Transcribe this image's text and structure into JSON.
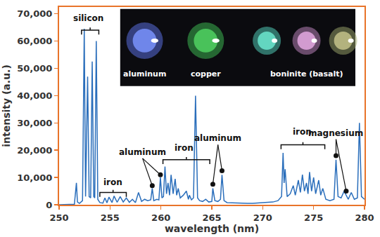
{
  "chart_data": {
    "type": "line",
    "x_label": "wavelength (nm)",
    "y_label": "intensity (a.u.)",
    "color": "#2a6ebb",
    "grid": false,
    "xlim": [
      250,
      280
    ],
    "ylim": [
      0,
      72500
    ],
    "xticks": [
      250,
      255,
      260,
      265,
      270,
      275,
      280
    ],
    "yticks": [
      0,
      {
        "value": 10000,
        "label": "10,000"
      },
      {
        "value": 20000,
        "label": "20,000"
      },
      {
        "value": 30000,
        "label": "30,000"
      },
      {
        "value": 40000,
        "label": "40,000"
      },
      {
        "value": 50000,
        "label": "50,000"
      },
      {
        "value": 60000,
        "label": "60,000"
      },
      {
        "value": 70000,
        "label": "70,000"
      }
    ],
    "x": [
      250,
      251.5,
      251.7,
      251.8,
      252.0,
      252.3,
      252.47,
      252.6,
      252.8,
      252.95,
      253.1,
      253.25,
      253.4,
      253.5,
      253.65,
      253.8,
      254.0,
      254.3,
      254.5,
      254.7,
      254.9,
      255.2,
      255.4,
      255.7,
      256.0,
      256.3,
      256.6,
      256.9,
      257.2,
      257.5,
      257.8,
      258.1,
      258.4,
      258.7,
      259.0,
      259.15,
      259.3,
      259.6,
      259.8,
      259.95,
      260.1,
      260.25,
      260.4,
      260.55,
      260.7,
      260.85,
      261.0,
      261.2,
      261.4,
      261.55,
      261.7,
      261.9,
      262.2,
      262.5,
      262.7,
      262.8,
      263.0,
      263.2,
      263.4,
      263.6,
      263.8,
      264.1,
      264.4,
      264.7,
      265.0,
      265.1,
      265.3,
      265.6,
      265.85,
      266.0,
      266.2,
      266.5,
      267.0,
      267.5,
      268.0,
      268.5,
      269.0,
      269.5,
      270.0,
      270.5,
      271.0,
      271.5,
      271.85,
      272.0,
      272.1,
      272.2,
      272.4,
      272.7,
      273.0,
      273.2,
      273.5,
      273.7,
      273.9,
      274.1,
      274.3,
      274.45,
      274.6,
      274.8,
      275.0,
      275.2,
      275.5,
      275.7,
      275.9,
      276.2,
      276.6,
      277.0,
      277.2,
      277.4,
      277.7,
      278.0,
      278.2,
      278.4,
      278.7,
      279.0,
      279.3,
      279.5,
      279.7,
      280
    ],
    "values": [
      0,
      200,
      8000,
      1000,
      500,
      1500,
      64500,
      3000,
      47000,
      3000,
      2500,
      52500,
      3000,
      2500,
      60000,
      2000,
      800,
      600,
      2500,
      700,
      2800,
      800,
      3200,
      900,
      3000,
      1000,
      2500,
      900,
      2000,
      800,
      4500,
      1200,
      2000,
      1500,
      1800,
      6000,
      1500,
      2000,
      1800,
      10000,
      2500,
      3000,
      14000,
      4000,
      8000,
      3500,
      11000,
      4000,
      9500,
      3500,
      6000,
      2500,
      3500,
      5000,
      2000,
      3500,
      1800,
      2500,
      40000,
      2500,
      1500,
      1200,
      2000,
      1000,
      1200,
      6000,
      1500,
      1200,
      2000,
      11000,
      1500,
      800,
      700,
      600,
      600,
      500,
      500,
      600,
      700,
      800,
      1000,
      1500,
      3000,
      19000,
      8000,
      13000,
      3000,
      4000,
      7000,
      3500,
      9000,
      4500,
      11000,
      5000,
      8000,
      4000,
      12000,
      5000,
      10000,
      4000,
      9000,
      3500,
      6000,
      2000,
      1500,
      2000,
      16500,
      3000,
      2500,
      5000,
      3500,
      2000,
      4500,
      2000,
      2500,
      30000,
      3000,
      2000
    ],
    "annotations": [
      {
        "text": "silicon",
        "x": 252.9,
        "y": 66000,
        "bracket": {
          "x0": 252.2,
          "x1": 253.9,
          "y": 64000
        }
      },
      {
        "text": "iron",
        "x": 255.3,
        "y": 6000,
        "bracket": {
          "x0": 254.0,
          "x1": 256.6,
          "y": 4500
        }
      },
      {
        "text": "aluminum",
        "x": 258.2,
        "y": 17000,
        "points": [
          {
            "x": 259.15,
            "y": 7000
          },
          {
            "x": 259.95,
            "y": 11000
          }
        ]
      },
      {
        "text": "iron",
        "x": 262.3,
        "y": 18500,
        "bracket": {
          "x0": 260.2,
          "x1": 264.8,
          "y": 16500
        }
      },
      {
        "text": "aluminum",
        "x": 265.6,
        "y": 22000,
        "points": [
          {
            "x": 265.1,
            "y": 7500
          },
          {
            "x": 266.0,
            "y": 12500
          }
        ]
      },
      {
        "text": "iron",
        "x": 273.9,
        "y": 24500,
        "bracket": {
          "x0": 271.8,
          "x1": 276.1,
          "y": 22000
        }
      },
      {
        "text": "magnesium",
        "x": 277.2,
        "y": 24000,
        "points": [
          {
            "x": 277.2,
            "y": 18000
          },
          {
            "x": 278.2,
            "y": 5000
          }
        ]
      }
    ],
    "inset": {
      "labels": [
        "aluminum",
        "copper",
        "boninite (basalt)"
      ]
    }
  }
}
